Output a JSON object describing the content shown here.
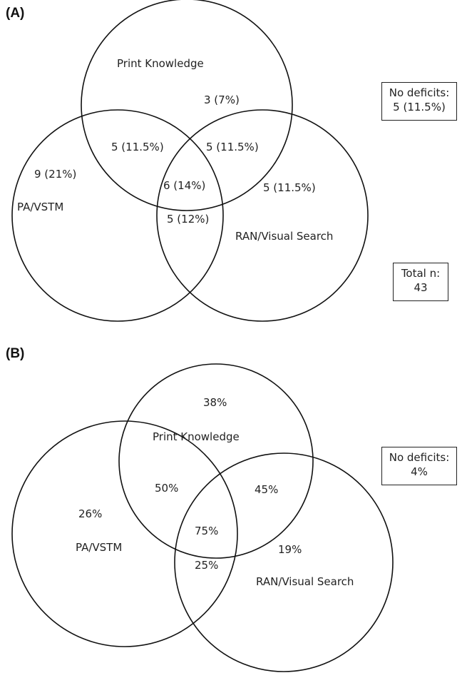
{
  "panel_a": {
    "label": "(A)",
    "sets": {
      "print_knowledge": "Print Knowledge",
      "pa_vstm": "PA/VSTM",
      "ran_visual_search": "RAN/Visual Search"
    },
    "regions": {
      "print_only": "3 (7%)",
      "print_pa": "5 (11.5%)",
      "print_ran": "5 (11.5%)",
      "pa_only": "9 (21%)",
      "all_three": "6 (14%)",
      "ran_only": "5 (11.5%)",
      "pa_ran": "5 (12%)"
    },
    "no_deficits": {
      "line1": "No deficits:",
      "line2": "5 (11.5%)"
    },
    "total": {
      "line1": "Total n:",
      "line2": "43"
    }
  },
  "panel_b": {
    "label": "(B)",
    "sets": {
      "print_knowledge": "Print Knowledge",
      "pa_vstm": "PA/VSTM",
      "ran_visual_search": "RAN/Visual Search"
    },
    "regions": {
      "print_only": "38%",
      "print_pa": "50%",
      "print_ran": "45%",
      "pa_only": "26%",
      "all_three": "75%",
      "ran_only": "19%",
      "pa_ran": "25%"
    },
    "no_deficits": {
      "line1": "No deficits:",
      "line2": "4%"
    }
  }
}
